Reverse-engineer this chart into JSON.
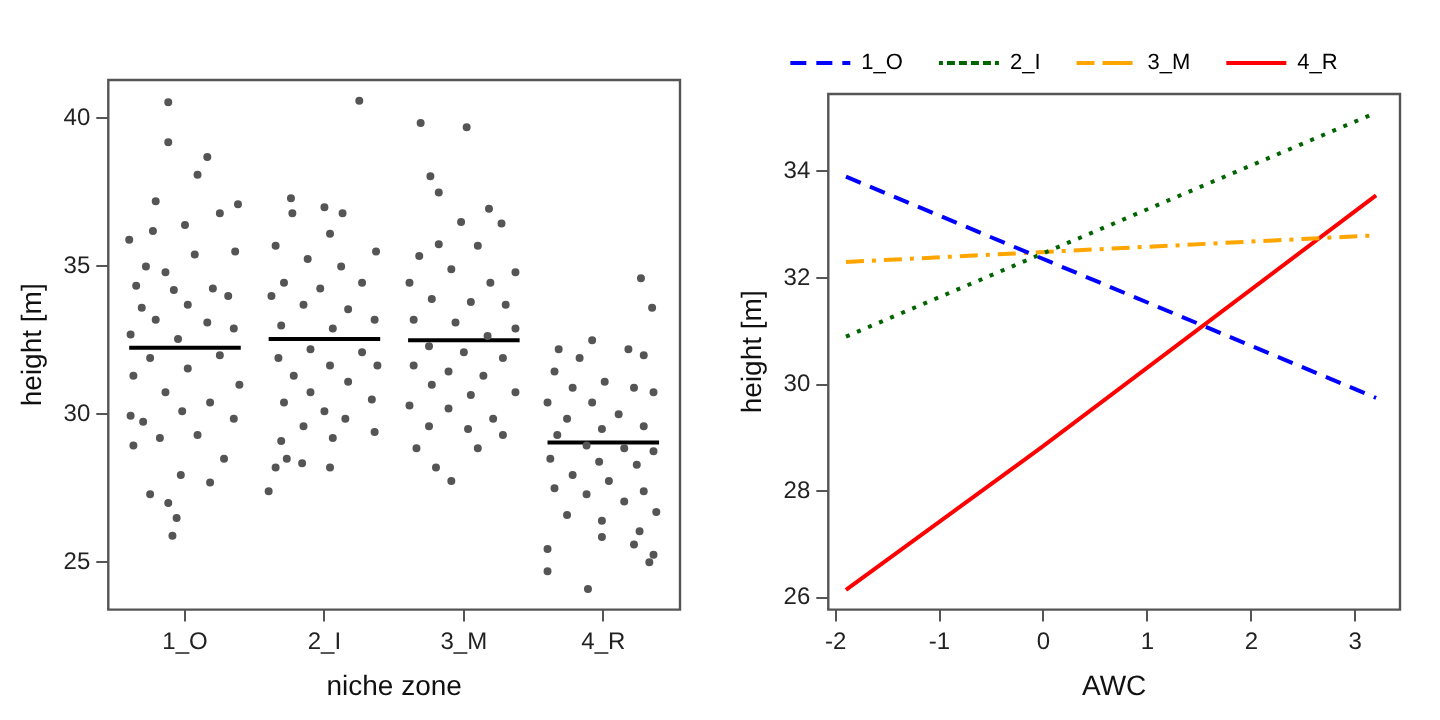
{
  "chart_data": [
    {
      "type": "scatter",
      "xlabel": "niche zone",
      "ylabel": "height [m]",
      "xlim": [
        0.45,
        4.55
      ],
      "xticks": [
        {
          "value": 1,
          "label": "1_O"
        },
        {
          "value": 2,
          "label": "2_I"
        },
        {
          "value": 3,
          "label": "3_M"
        },
        {
          "value": 4,
          "label": "4_R"
        }
      ],
      "ylim": [
        23.4,
        41.3
      ],
      "yticks": [
        25,
        30,
        35,
        40
      ],
      "grid": false,
      "legend": false,
      "marker": "circle",
      "series": [
        {
          "type": "scatter",
          "color": "#555555",
          "x": [
            0.88,
            0.88,
            1.16,
            1.09,
            0.79,
            1.25,
            1.38,
            0.77,
            0.6,
            1.0,
            1.36,
            1.07,
            0.72,
            0.86,
            0.65,
            0.92,
            1.2,
            1.31,
            0.69,
            1.02,
            0.79,
            1.16,
            1.35,
            0.61,
            0.95,
            1.25,
            0.75,
            0.63,
            1.02,
            1.39,
            0.86,
            1.18,
            0.61,
            0.98,
            1.35,
            0.7,
            0.82,
            1.09,
            0.63,
            1.28,
            1.18,
            0.97,
            0.75,
            0.88,
            0.94,
            0.91,
            2.25,
            1.76,
            2.0,
            1.77,
            2.13,
            2.04,
            1.65,
            2.37,
            1.88,
            2.12,
            1.71,
            1.97,
            2.27,
            1.62,
            1.85,
            2.17,
            2.36,
            1.69,
            2.06,
            1.9,
            2.27,
            1.67,
            2.04,
            2.38,
            1.78,
            2.17,
            1.9,
            2.34,
            1.71,
            2.0,
            2.15,
            2.36,
            1.85,
            1.69,
            2.06,
            1.73,
            1.65,
            2.04,
            1.84,
            1.6,
            2.69,
            3.02,
            2.76,
            2.82,
            3.18,
            2.98,
            3.27,
            3.1,
            2.82,
            2.68,
            3.37,
            2.91,
            2.61,
            3.19,
            2.77,
            3.05,
            3.3,
            2.64,
            2.94,
            3.37,
            3.17,
            2.75,
            3.0,
            3.28,
            2.64,
            2.89,
            3.14,
            2.77,
            3.37,
            3.05,
            2.61,
            2.89,
            3.21,
            2.75,
            3.03,
            3.28,
            2.66,
            3.1,
            2.8,
            2.91,
            4.27,
            4.35,
            3.92,
            3.68,
            4.18,
            3.83,
            4.29,
            3.65,
            4.01,
            3.78,
            4.22,
            4.36,
            3.6,
            3.92,
            4.11,
            3.74,
            4.29,
            3.99,
            3.67,
            3.88,
            4.15,
            4.36,
            3.62,
            3.97,
            4.24,
            3.78,
            4.04,
            3.65,
            4.29,
            3.88,
            4.15,
            4.38,
            3.74,
            3.99,
            4.26,
            3.6,
            4.22,
            4.36,
            3.99,
            4.33,
            3.6,
            3.89
          ],
          "values": [
            40.55,
            39.2,
            38.7,
            38.1,
            37.2,
            36.8,
            37.1,
            36.2,
            35.9,
            36.4,
            35.5,
            35.4,
            35.0,
            34.8,
            34.35,
            34.2,
            34.25,
            34.0,
            33.6,
            33.7,
            33.2,
            33.1,
            32.9,
            32.7,
            32.55,
            32.0,
            31.9,
            31.3,
            31.55,
            31.0,
            30.75,
            30.4,
            29.95,
            30.1,
            29.85,
            29.75,
            29.2,
            29.3,
            28.95,
            28.5,
            27.7,
            27.95,
            27.3,
            27.0,
            26.5,
            25.9,
            40.6,
            37.3,
            37.0,
            36.8,
            36.8,
            36.1,
            35.7,
            35.5,
            35.25,
            35.0,
            34.45,
            34.25,
            34.45,
            34.0,
            33.7,
            33.55,
            33.2,
            33.0,
            32.9,
            32.2,
            32.1,
            31.9,
            31.65,
            31.65,
            31.3,
            31.1,
            30.75,
            30.5,
            30.4,
            30.1,
            29.85,
            29.4,
            29.6,
            29.1,
            29.2,
            28.5,
            28.2,
            28.2,
            28.35,
            27.4,
            39.85,
            39.7,
            38.05,
            37.5,
            36.95,
            36.5,
            36.45,
            35.7,
            35.75,
            35.35,
            34.8,
            34.9,
            34.45,
            34.45,
            33.9,
            33.8,
            33.7,
            33.2,
            33.1,
            32.9,
            32.65,
            32.3,
            32.1,
            31.9,
            31.65,
            31.45,
            31.3,
            31.0,
            30.75,
            30.65,
            30.3,
            30.2,
            29.85,
            29.6,
            29.5,
            29.3,
            28.85,
            28.85,
            28.2,
            27.75,
            34.6,
            33.6,
            32.5,
            32.2,
            32.2,
            31.9,
            32.0,
            31.45,
            31.1,
            30.9,
            30.9,
            30.75,
            30.4,
            30.4,
            30.0,
            29.85,
            29.6,
            29.5,
            29.3,
            28.95,
            28.85,
            28.75,
            28.5,
            28.4,
            28.3,
            27.95,
            27.75,
            27.5,
            27.4,
            27.3,
            27.05,
            26.7,
            26.6,
            26.4,
            26.05,
            25.45,
            25.6,
            25.25,
            25.85,
            25.0,
            24.7,
            24.1
          ]
        },
        {
          "type": "line",
          "color": "#000000",
          "marker": "none",
          "x": [
            0.6,
            1.4
          ],
          "values": [
            32.25,
            32.25
          ]
        },
        {
          "type": "line",
          "color": "#000000",
          "marker": "none",
          "x": [
            1.6,
            2.4
          ],
          "values": [
            32.55,
            32.55
          ]
        },
        {
          "type": "line",
          "color": "#000000",
          "marker": "none",
          "x": [
            2.6,
            3.4
          ],
          "values": [
            32.5,
            32.5
          ]
        },
        {
          "type": "line",
          "color": "#000000",
          "marker": "none",
          "x": [
            3.6,
            4.4
          ],
          "values": [
            29.05,
            29.05
          ]
        }
      ]
    },
    {
      "type": "line",
      "xlabel": "AWC",
      "ylabel": "height [m]",
      "xlim": [
        -2.07,
        3.43
      ],
      "xticks": [
        -2,
        -1,
        0,
        1,
        2,
        3
      ],
      "ylim": [
        25.78,
        35.45
      ],
      "yticks": [
        26,
        28,
        30,
        32,
        34
      ],
      "grid": false,
      "legend": "top",
      "marker": "none",
      "series": [
        {
          "name": "1_O",
          "color": "#0000ff",
          "line_style": "dashed",
          "x": [
            -1.9,
            3.2
          ],
          "values": [
            33.9,
            29.75
          ]
        },
        {
          "name": "2_I",
          "color": "#006400",
          "line_style": "dotted",
          "x": [
            -1.9,
            3.2
          ],
          "values": [
            30.9,
            35.1
          ]
        },
        {
          "name": "3_M",
          "color": "#ffa500",
          "line_style": "dashdot",
          "x": [
            -1.9,
            3.2
          ],
          "values": [
            32.3,
            32.8
          ]
        },
        {
          "name": "4_R",
          "color": "#ff0000",
          "line_style": "solid",
          "x": [
            -1.9,
            0,
            3.2
          ],
          "values": [
            26.15,
            28.85,
            33.55
          ]
        }
      ]
    }
  ]
}
